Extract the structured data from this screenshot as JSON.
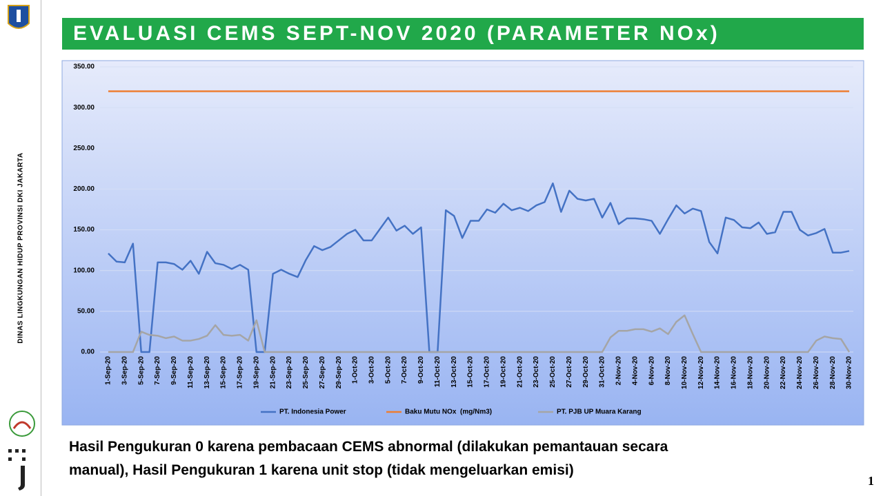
{
  "header": {
    "title": "EVALUASI CEMS SEPT-NOV 2020 (PARAMETER NOx)"
  },
  "sidebar": {
    "text": "DINAS LINGKUNGAN HIDUP PROVINSI DKI JAKARTA"
  },
  "chart_data": {
    "type": "line",
    "categories": [
      "1-Sep-20",
      null,
      "3-Sep-20",
      null,
      "5-Sep-20",
      null,
      "7-Sep-20",
      null,
      "9-Sep-20",
      null,
      "11-Sep-20",
      null,
      "13-Sep-20",
      null,
      "15-Sep-20",
      null,
      "17-Sep-20",
      null,
      "19-Sep-20",
      null,
      "21-Sep-20",
      null,
      "23-Sep-20",
      null,
      "25-Sep-20",
      null,
      "27-Sep-20",
      null,
      "29-Sep-20",
      null,
      "1-Oct-20",
      null,
      "3-Oct-20",
      null,
      "5-Oct-20",
      null,
      "7-Oct-20",
      null,
      "9-Oct-20",
      null,
      "11-Oct-20",
      null,
      "13-Oct-20",
      null,
      "15-Oct-20",
      null,
      "17-Oct-20",
      null,
      "19-Oct-20",
      null,
      "21-Oct-20",
      null,
      "23-Oct-20",
      null,
      "25-Oct-20",
      null,
      "27-Oct-20",
      null,
      "29-Oct-20",
      null,
      "31-Oct-20",
      null,
      "2-Nov-20",
      null,
      "4-Nov-20",
      null,
      "6-Nov-20",
      null,
      "8-Nov-20",
      null,
      "10-Nov-20",
      null,
      "12-Nov-20",
      null,
      "14-Nov-20",
      null,
      "16-Nov-20",
      null,
      "18-Nov-20",
      null,
      "20-Nov-20",
      null,
      "22-Nov-20",
      null,
      "24-Nov-20",
      null,
      "26-Nov-20",
      null,
      "28-Nov-20",
      null,
      "30-Nov-20"
    ],
    "series": [
      {
        "name": "PT. Indonesia Power",
        "color": "#4472c4",
        "values": [
          121,
          111,
          110,
          133,
          0,
          0,
          110,
          110,
          108,
          101,
          112,
          96,
          123,
          109,
          107,
          102,
          107,
          101,
          0,
          0,
          96,
          101,
          96,
          92,
          113,
          130,
          125,
          129,
          137,
          145,
          150,
          137,
          137,
          151,
          165,
          149,
          155,
          145,
          153,
          0,
          0,
          174,
          167,
          140,
          161,
          161,
          175,
          171,
          182,
          174,
          177,
          173,
          180,
          184,
          207,
          172,
          198,
          188,
          186,
          188,
          165,
          183,
          157,
          164,
          164,
          163,
          161,
          145,
          163,
          180,
          170,
          176,
          173,
          135,
          121,
          165,
          162,
          153,
          152,
          159,
          145,
          147,
          172,
          172,
          150,
          143,
          146,
          151,
          122,
          122,
          124
        ]
      },
      {
        "name": "Baku Mutu NOx  (mg/Nm3)",
        "color": "#ed7d31",
        "values": [
          320,
          320,
          320,
          320,
          320,
          320,
          320,
          320,
          320,
          320,
          320,
          320,
          320,
          320,
          320,
          320,
          320,
          320,
          320,
          320,
          320,
          320,
          320,
          320,
          320,
          320,
          320,
          320,
          320,
          320,
          320,
          320,
          320,
          320,
          320,
          320,
          320,
          320,
          320,
          320,
          320,
          320,
          320,
          320,
          320,
          320,
          320,
          320,
          320,
          320,
          320,
          320,
          320,
          320,
          320,
          320,
          320,
          320,
          320,
          320,
          320,
          320,
          320,
          320,
          320,
          320,
          320,
          320,
          320,
          320,
          320,
          320,
          320,
          320,
          320,
          320,
          320,
          320,
          320,
          320,
          320,
          320,
          320,
          320,
          320,
          320,
          320,
          320,
          320,
          320,
          320
        ]
      },
      {
        "name": "PT. PJB UP Muara Karang",
        "color": "#a5a5a5",
        "values": [
          0,
          0,
          0,
          0,
          25,
          21,
          20,
          17,
          19,
          14,
          14,
          16,
          20,
          33,
          21,
          20,
          21,
          14,
          39,
          0,
          0,
          0,
          0,
          0,
          0,
          0,
          0,
          0,
          0,
          0,
          0,
          0,
          0,
          0,
          0,
          0,
          0,
          0,
          0,
          0,
          0,
          0,
          0,
          0,
          0,
          0,
          0,
          0,
          0,
          0,
          0,
          0,
          0,
          0,
          0,
          0,
          0,
          0,
          0,
          0,
          0,
          18,
          26,
          26,
          28,
          28,
          25,
          29,
          22,
          37,
          45,
          22,
          0,
          0,
          0,
          0,
          0,
          0,
          0,
          0,
          0,
          0,
          0,
          0,
          0,
          0,
          14,
          19,
          17,
          16,
          0
        ]
      }
    ],
    "ylim": [
      0,
      350
    ],
    "yticks": [
      {
        "value": 0,
        "label": "0.00"
      },
      {
        "value": 50,
        "label": "50.00"
      },
      {
        "value": 100,
        "label": "100.00"
      },
      {
        "value": 150,
        "label": "150.00"
      },
      {
        "value": 200,
        "label": "200.00"
      },
      {
        "value": 250,
        "label": "250.00"
      },
      {
        "value": 300,
        "label": "300.00"
      },
      {
        "value": 350,
        "label": "350.00"
      }
    ],
    "grid": true,
    "legend": "bottom"
  },
  "note": [
    "Hasil Pengukuran 0 karena pembacaan CEMS abnormal (dilakukan pemantauan secara",
    "manual), Hasil Pengukuran 1 karena unit stop (tidak mengeluarkan emisi)"
  ],
  "page_number": "1"
}
